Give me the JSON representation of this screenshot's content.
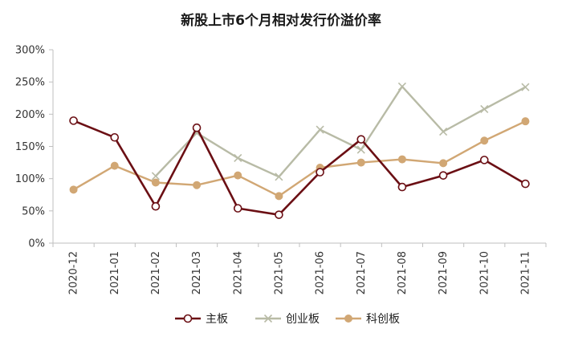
{
  "chart_data": {
    "type": "line",
    "title": "新股上市6个月相对发行价溢价率",
    "categories": [
      "2020-12",
      "2021-01",
      "2021-02",
      "2021-03",
      "2021-04",
      "2021-05",
      "2021-06",
      "2021-07",
      "2021-08",
      "2021-09",
      "2021-10",
      "2021-11"
    ],
    "y_tick_labels": [
      "0%",
      "50%",
      "100%",
      "150%",
      "200%",
      "250%",
      "300%"
    ],
    "ylim": [
      0,
      300
    ],
    "ytick_values": [
      0,
      50,
      100,
      150,
      200,
      250,
      300
    ],
    "y_unit": "%",
    "grid": false,
    "legend_position": "bottom",
    "series": [
      {
        "name": "主板",
        "color": "#6b0f14",
        "marker": "hollow-circle",
        "values": [
          190,
          164,
          57,
          179,
          54,
          44,
          110,
          161,
          87,
          105,
          129,
          92
        ]
      },
      {
        "name": "创业板",
        "color": "#b8bba6",
        "marker": "x",
        "values": [
          null,
          null,
          104,
          171,
          132,
          103,
          176,
          145,
          243,
          173,
          208,
          242
        ]
      },
      {
        "name": "科创板",
        "color": "#d1a774",
        "marker": "filled-circle",
        "values": [
          83,
          120,
          94,
          90,
          105,
          73,
          117,
          125,
          130,
          124,
          159,
          189
        ]
      }
    ]
  }
}
